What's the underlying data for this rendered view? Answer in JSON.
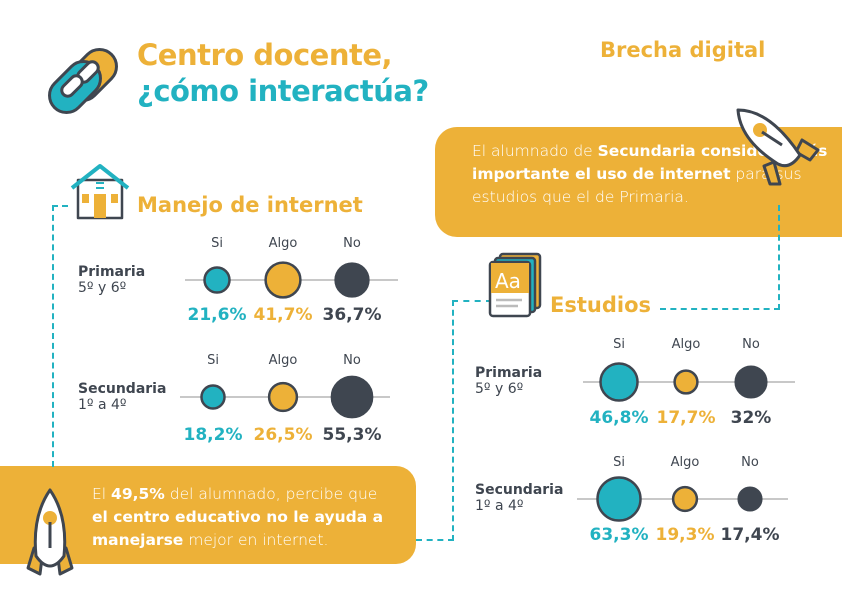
{
  "header": {
    "title_line1": "Centro docente,",
    "title_line2": "¿cómo interactúa?",
    "section": "Brecha digital"
  },
  "sections": {
    "internet": "Manejo de internet",
    "estudios": "Estudios"
  },
  "callouts": {
    "left": {
      "p1": "El ",
      "b1": "49,5%",
      "p2": " del alumnado, percibe que ",
      "b2": "el centro educativo no le ayuda a manejarse",
      "p3": " mejor en internet."
    },
    "right": {
      "p1": "El alumnado de ",
      "b1": "Secundaria considera más importante el uso de internet",
      "p2": " para sus estudios que el de Primaria."
    }
  },
  "colors": {
    "si": "#22b2c1",
    "algo": "#edb138",
    "no": "#3f4650"
  },
  "chart_data": [
    {
      "type": "bubble",
      "title": "Manejo de internet",
      "categories": [
        "Si",
        "Algo",
        "No"
      ],
      "series": [
        {
          "name": "Primaria",
          "sub": "5º y 6º",
          "values": [
            21.6,
            41.7,
            36.7
          ],
          "labels": [
            "21,6%",
            "41,7%",
            "36,7%"
          ]
        },
        {
          "name": "Secundaria",
          "sub": "1º a 4º",
          "values": [
            18.2,
            26.5,
            55.3
          ],
          "labels": [
            "18,2%",
            "26,5%",
            "55,3%"
          ]
        }
      ]
    },
    {
      "type": "bubble",
      "title": "Estudios",
      "categories": [
        "Si",
        "Algo",
        "No"
      ],
      "series": [
        {
          "name": "Primaria",
          "sub": "5º y 6º",
          "values": [
            46.8,
            17.7,
            32
          ],
          "labels": [
            "46,8%",
            "17,7%",
            "32%"
          ]
        },
        {
          "name": "Secundaria",
          "sub": "1º a 4º",
          "values": [
            63.3,
            19.3,
            17.4
          ],
          "labels": [
            "63,3%",
            "19,3%",
            "17,4%"
          ]
        }
      ]
    }
  ]
}
